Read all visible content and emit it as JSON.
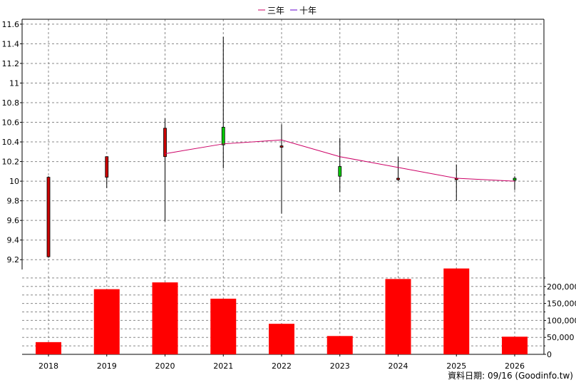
{
  "chart_data": {
    "type": "candlestick+bar",
    "legend": [
      {
        "name": "三年",
        "color": "#cc0066"
      },
      {
        "name": "十年",
        "color": "#6600cc"
      }
    ],
    "years": [
      "2018",
      "2019",
      "2020",
      "2021",
      "2022",
      "2023",
      "2024",
      "2025",
      "2026"
    ],
    "price_axis": {
      "ylim": [
        9.1,
        11.65
      ],
      "ticks": [
        "11.6",
        "11.4",
        "11.2",
        "11",
        "10.8",
        "10.6",
        "10.4",
        "10.2",
        "10",
        "9.8",
        "9.6",
        "9.4",
        "9.2"
      ]
    },
    "candles": [
      {
        "year": "2018",
        "open": 10.04,
        "close": 9.23,
        "high": 10.05,
        "low": 9.22
      },
      {
        "year": "2019",
        "open": 10.25,
        "close": 10.04,
        "high": 10.25,
        "low": 9.93
      },
      {
        "year": "2020",
        "open": 10.54,
        "close": 10.25,
        "high": 10.64,
        "low": 9.59
      },
      {
        "year": "2021",
        "open": 10.37,
        "close": 10.55,
        "high": 11.47,
        "low": 10.13
      },
      {
        "year": "2022",
        "open": 10.36,
        "close": 10.35,
        "high": 10.58,
        "low": 9.67
      },
      {
        "year": "2023",
        "open": 10.05,
        "close": 10.15,
        "high": 10.44,
        "low": 9.89
      },
      {
        "year": "2024",
        "open": 10.03,
        "close": 10.02,
        "high": 10.25,
        "low": 10.0
      },
      {
        "year": "2025",
        "open": 10.03,
        "close": 10.02,
        "high": 10.17,
        "low": 9.8
      },
      {
        "year": "2026",
        "open": 10.01,
        "close": 10.03,
        "high": 10.05,
        "low": 9.91
      }
    ],
    "avg_line": {
      "name": "三年",
      "x": [
        "2020",
        "2021",
        "2022",
        "2023",
        "2024",
        "2025",
        "2026"
      ],
      "values": [
        10.28,
        10.38,
        10.42,
        10.25,
        10.14,
        10.03,
        10.0
      ]
    },
    "volume_axis": {
      "ylim": [
        0,
        250000
      ],
      "ticks": [
        "200,000",
        "150,000",
        "100,000",
        "50,000",
        "0"
      ]
    },
    "volume": [
      36000,
      192000,
      212000,
      164000,
      90000,
      54000,
      222000,
      253000,
      52000
    ],
    "colors": {
      "up": "#cc0000",
      "down": "#00cc00",
      "volume": "#ff0000",
      "grid": "#888888"
    }
  },
  "footer": "資料日期: 09/16  (Goodinfo.tw)"
}
